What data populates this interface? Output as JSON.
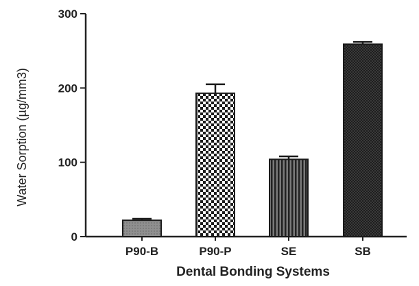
{
  "chart_data": {
    "type": "bar",
    "title": "",
    "xlabel": "Dental Bonding Systems",
    "ylabel": "Water Sorption (µg/mm3)",
    "categories": [
      "P90-B",
      "P90-P",
      "SE",
      "SB"
    ],
    "values": [
      22,
      193,
      104,
      259
    ],
    "error": [
      2,
      12,
      4,
      3
    ],
    "ylim": [
      0,
      300
    ],
    "yticks": [
      "0",
      "100",
      "200",
      "300"
    ],
    "grid": false,
    "legend": "none",
    "bar_styles": [
      {
        "fill": "#8c8c8c",
        "pattern": "solid-gray"
      },
      {
        "fill": "#ffffff",
        "pattern": "checkerboard"
      },
      {
        "fill": "#555555",
        "pattern": "vertical-stripes"
      },
      {
        "fill": "#2e2e2e",
        "pattern": "dense-dark"
      }
    ],
    "colors": {
      "axis": "#222222",
      "bar_stroke": "#1a1a1a"
    }
  }
}
